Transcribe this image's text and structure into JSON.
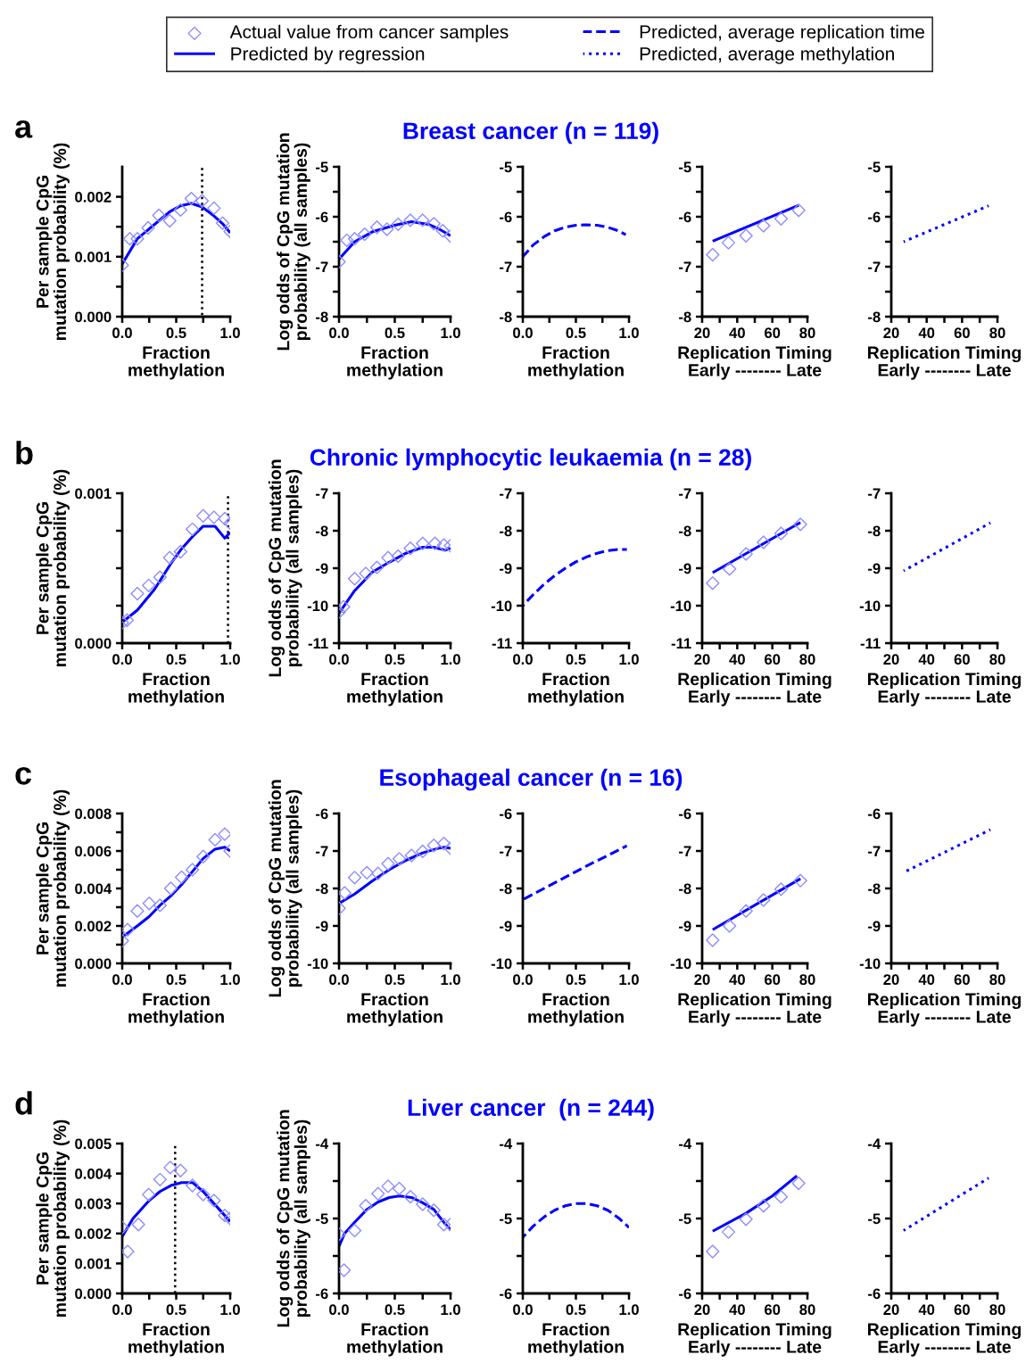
{
  "chart_data": [
    {
      "type": "line",
      "xlabel": "Fraction\nmethylation",
      "ylabel": "Per sample CpG\nmutation probability (%)",
      "annotations": [
        "a"
      ],
      "xlim": [
        0,
        1
      ],
      "xticks": [
        {
          "value": 0,
          "label": "0.0"
        },
        {
          "value": 0.25,
          "label": null
        },
        {
          "value": 0.5,
          "label": "0.5"
        },
        {
          "value": 0.75,
          "label": null
        },
        {
          "value": 1,
          "label": "1.0"
        }
      ],
      "ylim": [
        0,
        0.0025
      ],
      "yticks": [
        {
          "value": 0,
          "label": "0.000"
        },
        {
          "value": 0.0005,
          "label": null
        },
        {
          "value": 0.001,
          "label": "0.001"
        },
        {
          "value": 0.0015,
          "label": null
        },
        {
          "value": 0.002,
          "label": "0.002"
        }
      ],
      "ref_lines": [
        {
          "axis": "x",
          "value": 0.74,
          "label": null,
          "color": "#000000",
          "line_style": "dotted"
        }
      ],
      "series": [
        {
          "type": "scatter",
          "marker": "diamond",
          "color": "#8c8cff",
          "x": [
            0,
            0.07,
            0.14,
            0.24,
            0.34,
            0.44,
            0.54,
            0.64,
            0.74,
            0.85,
            0.93,
            1.0
          ],
          "values": [
            0.00086,
            0.0013,
            0.0013,
            0.00148,
            0.00169,
            0.0016,
            0.00178,
            0.00197,
            0.00193,
            0.00181,
            0.00156,
            0.00142
          ]
        },
        {
          "type": "line",
          "line_style": "solid",
          "color": "#0000ff",
          "x": [
            0,
            0.14,
            0.24,
            0.34,
            0.44,
            0.54,
            0.64,
            0.74,
            0.85,
            0.93,
            1.0
          ],
          "values": [
            0.00088,
            0.0013,
            0.00145,
            0.0016,
            0.00175,
            0.00185,
            0.00189,
            0.00183,
            0.00168,
            0.00155,
            0.0014
          ]
        }
      ]
    },
    {
      "type": "line",
      "xlabel": "Fraction\nmethylation",
      "ylabel": "Log odds of CpG mutation\nprobability (all samples)",
      "legend": "top",
      "xlim": [
        0,
        1
      ],
      "xticks": [
        {
          "value": 0,
          "label": "0.0"
        },
        {
          "value": 0.25,
          "label": null
        },
        {
          "value": 0.5,
          "label": "0.5"
        },
        {
          "value": 0.75,
          "label": null
        },
        {
          "value": 1,
          "label": "1.0"
        }
      ],
      "ylim": [
        -8,
        -5
      ],
      "yticks": [
        -8,
        {
          "value": -7.5,
          "label": null
        },
        -7,
        {
          "value": -6.5,
          "label": null
        },
        -6,
        {
          "value": -5.5,
          "label": null
        },
        -5
      ],
      "series": [
        {
          "type": "scatter",
          "name": "Actual value from cancer samples",
          "marker": "diamond",
          "color": "#8c8cff",
          "x": [
            0,
            0.07,
            0.14,
            0.23,
            0.34,
            0.43,
            0.53,
            0.64,
            0.75,
            0.85,
            0.93,
            1.0
          ],
          "values": [
            -6.9,
            -6.47,
            -6.44,
            -6.35,
            -6.21,
            -6.25,
            -6.15,
            -6.07,
            -6.07,
            -6.14,
            -6.28,
            -6.39
          ]
        },
        {
          "type": "line",
          "name": "Predicted by regression",
          "line_style": "solid",
          "color": "#0000ff",
          "x": [
            0,
            0.14,
            0.3,
            0.5,
            0.65,
            0.8,
            0.9,
            1.0
          ],
          "values": [
            -6.85,
            -6.5,
            -6.3,
            -6.17,
            -6.1,
            -6.15,
            -6.25,
            -6.38
          ]
        }
      ]
    },
    {
      "type": "line",
      "title": "Breast cancer (n = 119)",
      "xlabel": "Fraction\nmethylation",
      "xlim": [
        0,
        1
      ],
      "xticks": [
        {
          "value": 0,
          "label": "0.0"
        },
        {
          "value": 0.25,
          "label": null
        },
        {
          "value": 0.5,
          "label": "0.5"
        },
        {
          "value": 0.75,
          "label": null
        },
        {
          "value": 1,
          "label": "1.0"
        }
      ],
      "ylim": [
        -8,
        -5
      ],
      "yticks": [
        -8,
        {
          "value": -7.5,
          "label": null
        },
        -7,
        {
          "value": -6.5,
          "label": null
        },
        -6,
        {
          "value": -5.5,
          "label": null
        },
        -5
      ],
      "series": [
        {
          "type": "line",
          "name": "Predicted, average replication time",
          "line_style": "dashed",
          "color": "#0000ff",
          "x": [
            0,
            0.1,
            0.2,
            0.3,
            0.4,
            0.5,
            0.6,
            0.7,
            0.8,
            0.9,
            0.97
          ],
          "values": [
            -6.8,
            -6.56,
            -6.4,
            -6.28,
            -6.21,
            -6.17,
            -6.16,
            -6.17,
            -6.21,
            -6.28,
            -6.36
          ]
        }
      ]
    },
    {
      "type": "line",
      "xlabel": "Replication Timing\nEarly -------- Late",
      "xlim": [
        20,
        80
      ],
      "xticks": [
        20,
        {
          "value": 30,
          "label": null
        },
        40,
        {
          "value": 50,
          "label": null
        },
        60,
        {
          "value": 70,
          "label": null
        },
        80
      ],
      "ylim": [
        -8,
        -5
      ],
      "yticks": [
        -8,
        {
          "value": -7.5,
          "label": null
        },
        -7,
        {
          "value": -6.5,
          "label": null
        },
        -6,
        {
          "value": -5.5,
          "label": null
        },
        -5
      ],
      "series": [
        {
          "type": "scatter",
          "marker": "diamond",
          "color": "#8c8cff",
          "x": [
            26,
            35,
            45,
            55,
            65,
            75
          ],
          "values": [
            -6.76,
            -6.52,
            -6.38,
            -6.18,
            -6.04,
            -5.87
          ]
        },
        {
          "type": "line",
          "line_style": "solid",
          "color": "#0000ff",
          "x": [
            26,
            75
          ],
          "values": [
            -6.49,
            -5.77
          ]
        }
      ]
    },
    {
      "type": "line",
      "xlabel": "Replication Timing\nEarly -------- Late",
      "xlim": [
        20,
        80
      ],
      "xticks": [
        20,
        {
          "value": 30,
          "label": null
        },
        40,
        {
          "value": 50,
          "label": null
        },
        60,
        {
          "value": 70,
          "label": null
        },
        80
      ],
      "ylim": [
        -8,
        -5
      ],
      "yticks": [
        -8,
        {
          "value": -7.5,
          "label": null
        },
        -7,
        {
          "value": -6.5,
          "label": null
        },
        -6,
        {
          "value": -5.5,
          "label": null
        },
        -5
      ],
      "series": [
        {
          "type": "line",
          "name": "Predicted, average methylation",
          "line_style": "dotted",
          "color": "#0000ff",
          "x": [
            27,
            75
          ],
          "values": [
            -6.5,
            -5.78
          ]
        }
      ]
    },
    {
      "type": "line",
      "xlabel": "Fraction\nmethylation",
      "ylabel": "Per sample CpG\nmutation probability (%)",
      "annotations": [
        "b"
      ],
      "xlim": [
        0,
        1
      ],
      "xticks": [
        {
          "value": 0,
          "label": "0.0"
        },
        {
          "value": 0.25,
          "label": null
        },
        {
          "value": 0.5,
          "label": "0.5"
        },
        {
          "value": 0.75,
          "label": null
        },
        {
          "value": 1,
          "label": "1.0"
        }
      ],
      "ylim": [
        0,
        0.001
      ],
      "yticks": [
        {
          "value": 0,
          "label": "0.000"
        },
        {
          "value": 0.00025,
          "label": null
        },
        {
          "value": 0.0005,
          "label": null
        },
        {
          "value": 0.00075,
          "label": null
        },
        {
          "value": 0.001,
          "label": "0.001"
        }
      ],
      "ref_lines": [
        {
          "axis": "x",
          "value": 0.98,
          "label": null,
          "color": "#000000",
          "line_style": "dotted"
        }
      ],
      "series": [
        {
          "type": "scatter",
          "marker": "diamond",
          "color": "#8c8cff",
          "x": [
            0,
            0.045,
            0.14,
            0.245,
            0.35,
            0.44,
            0.54,
            0.65,
            0.75,
            0.85,
            0.95,
            1.0
          ],
          "values": [
            0.000137,
            0.000153,
            0.00033,
            0.000385,
            0.00044,
            0.00057,
            0.00061,
            0.00076,
            0.00085,
            0.00084,
            0.00083,
            0.0008
          ]
        },
        {
          "type": "line",
          "line_style": "solid",
          "color": "#0000ff",
          "x": [
            0,
            0.14,
            0.3,
            0.45,
            0.55,
            0.65,
            0.75,
            0.86,
            0.95,
            1.0
          ],
          "values": [
            0.00014,
            0.00022,
            0.00036,
            0.00053,
            0.00063,
            0.00071,
            0.00078,
            0.00078,
            0.0007,
            0.00074
          ]
        }
      ]
    },
    {
      "type": "line",
      "xlabel": "Fraction\nmethylation",
      "ylabel": "Log odds of CpG mutation\nprobability (all samples)",
      "xlim": [
        0,
        1
      ],
      "xticks": [
        {
          "value": 0,
          "label": "0.0"
        },
        {
          "value": 0.25,
          "label": null
        },
        {
          "value": 0.5,
          "label": "0.5"
        },
        {
          "value": 0.75,
          "label": null
        },
        {
          "value": 1,
          "label": "1.0"
        }
      ],
      "ylim": [
        -11,
        -7
      ],
      "yticks": [
        -11,
        -10,
        -9,
        -8,
        -7
      ],
      "series": [
        {
          "type": "scatter",
          "marker": "diamond",
          "color": "#8c8cff",
          "x": [
            0,
            0.04,
            0.14,
            0.24,
            0.34,
            0.44,
            0.53,
            0.64,
            0.75,
            0.86,
            0.94,
            1.0
          ],
          "values": [
            -10.17,
            -10.03,
            -9.28,
            -9.14,
            -8.98,
            -8.72,
            -8.68,
            -8.47,
            -8.34,
            -8.34,
            -8.38,
            -8.4
          ]
        },
        {
          "type": "line",
          "line_style": "solid",
          "color": "#0000ff",
          "x": [
            0,
            0.14,
            0.3,
            0.45,
            0.6,
            0.75,
            0.85,
            0.95,
            1.0
          ],
          "values": [
            -10.2,
            -9.6,
            -9.1,
            -8.84,
            -8.6,
            -8.44,
            -8.44,
            -8.52,
            -8.47
          ]
        }
      ]
    },
    {
      "type": "line",
      "title": "Chronic lymphocytic leukaemia (n = 28)",
      "xlabel": "Fraction\nmethylation",
      "xlim": [
        0,
        1
      ],
      "xticks": [
        {
          "value": 0,
          "label": "0.0"
        },
        {
          "value": 0.25,
          "label": null
        },
        {
          "value": 0.5,
          "label": "0.5"
        },
        {
          "value": 0.75,
          "label": null
        },
        {
          "value": 1,
          "label": "1.0"
        }
      ],
      "ylim": [
        -11,
        -7
      ],
      "yticks": [
        -11,
        -10,
        -9,
        -8,
        -7
      ],
      "series": [
        {
          "type": "line",
          "line_style": "dashed",
          "color": "#0000ff",
          "x": [
            0,
            0.1,
            0.2,
            0.3,
            0.4,
            0.5,
            0.6,
            0.7,
            0.8,
            0.9,
            0.98
          ],
          "values": [
            -10,
            -9.7,
            -9.43,
            -9.2,
            -9.0,
            -8.83,
            -8.7,
            -8.6,
            -8.53,
            -8.5,
            -8.5
          ]
        }
      ]
    },
    {
      "type": "line",
      "xlabel": "Replication Timing\nEarly -------- Late",
      "xlim": [
        20,
        80
      ],
      "xticks": [
        20,
        {
          "value": 30,
          "label": null
        },
        40,
        {
          "value": 50,
          "label": null
        },
        60,
        {
          "value": 70,
          "label": null
        },
        80
      ],
      "ylim": [
        -11,
        -7
      ],
      "yticks": [
        -11,
        -10,
        -9,
        -8,
        -7
      ],
      "series": [
        {
          "type": "scatter",
          "marker": "diamond",
          "color": "#8c8cff",
          "x": [
            26,
            35.6,
            45,
            55,
            65,
            76
          ],
          "values": [
            -9.4,
            -9.02,
            -8.62,
            -8.31,
            -8.07,
            -7.83
          ]
        },
        {
          "type": "line",
          "line_style": "solid",
          "color": "#0000ff",
          "x": [
            26,
            76
          ],
          "values": [
            -9.12,
            -7.78
          ]
        }
      ]
    },
    {
      "type": "line",
      "xlabel": "Replication Timing\nEarly -------- Late",
      "xlim": [
        20,
        80
      ],
      "xticks": [
        20,
        {
          "value": 30,
          "label": null
        },
        40,
        {
          "value": 50,
          "label": null
        },
        60,
        {
          "value": 70,
          "label": null
        },
        80
      ],
      "ylim": [
        -11,
        -7
      ],
      "yticks": [
        -11,
        -10,
        -9,
        -8,
        -7
      ],
      "series": [
        {
          "type": "line",
          "line_style": "dotted",
          "color": "#0000ff",
          "x": [
            27,
            76
          ],
          "values": [
            -9.07,
            -7.79
          ]
        }
      ]
    },
    {
      "type": "line",
      "xlabel": "Fraction\nmethylation",
      "ylabel": "Per sample CpG\nmutation probability (%)",
      "annotations": [
        "c"
      ],
      "xlim": [
        0,
        1
      ],
      "xticks": [
        {
          "value": 0,
          "label": "0.0"
        },
        {
          "value": 0.25,
          "label": null
        },
        {
          "value": 0.5,
          "label": "0.5"
        },
        {
          "value": 0.75,
          "label": null
        },
        {
          "value": 1,
          "label": "1.0"
        }
      ],
      "ylim": [
        0,
        0.008
      ],
      "yticks": [
        {
          "value": 0,
          "label": "0.000"
        },
        {
          "value": 0.001,
          "label": null
        },
        {
          "value": 0.002,
          "label": "0.002"
        },
        {
          "value": 0.003,
          "label": null
        },
        {
          "value": 0.004,
          "label": "0.004"
        },
        {
          "value": 0.005,
          "label": null
        },
        {
          "value": 0.006,
          "label": "0.006"
        },
        {
          "value": 0.007,
          "label": null
        },
        {
          "value": 0.008,
          "label": "0.008"
        }
      ],
      "series": [
        {
          "type": "scatter",
          "marker": "diamond",
          "color": "#8c8cff",
          "x": [
            0,
            0.05,
            0.14,
            0.25,
            0.35,
            0.45,
            0.55,
            0.65,
            0.75,
            0.86,
            0.95,
            1.0
          ],
          "values": [
            0.0012,
            0.0018,
            0.0028,
            0.0032,
            0.0031,
            0.004,
            0.0046,
            0.005,
            0.0057,
            0.0066,
            0.0069,
            0.006
          ]
        },
        {
          "type": "line",
          "line_style": "solid",
          "color": "#0000ff",
          "x": [
            0,
            0.14,
            0.25,
            0.35,
            0.45,
            0.55,
            0.65,
            0.75,
            0.86,
            0.95,
            1.0
          ],
          "values": [
            0.0014,
            0.002,
            0.0025,
            0.0031,
            0.0036,
            0.0042,
            0.0049,
            0.0056,
            0.0061,
            0.0062,
            0.006
          ]
        }
      ]
    },
    {
      "type": "line",
      "xlabel": "Fraction\nmethylation",
      "ylabel": "Log odds of CpG mutation\nprobability (all samples)",
      "xlim": [
        0,
        1
      ],
      "xticks": [
        {
          "value": 0,
          "label": "0.0"
        },
        {
          "value": 0.25,
          "label": null
        },
        {
          "value": 0.5,
          "label": "0.5"
        },
        {
          "value": 0.75,
          "label": null
        },
        {
          "value": 1,
          "label": "1.0"
        }
      ],
      "ylim": [
        -10,
        -6
      ],
      "yticks": [
        -10,
        -9,
        -8,
        -7,
        -6
      ],
      "series": [
        {
          "type": "scatter",
          "marker": "diamond",
          "color": "#8c8cff",
          "x": [
            0,
            0.05,
            0.14,
            0.25,
            0.35,
            0.44,
            0.54,
            0.65,
            0.75,
            0.85,
            0.94,
            1.0
          ],
          "values": [
            -8.53,
            -8.12,
            -7.71,
            -7.58,
            -7.6,
            -7.34,
            -7.21,
            -7.12,
            -7.01,
            -6.85,
            -6.8,
            -6.93
          ]
        },
        {
          "type": "line",
          "line_style": "solid",
          "color": "#0000ff",
          "x": [
            0,
            0.14,
            0.3,
            0.45,
            0.6,
            0.75,
            0.9,
            0.95,
            1.0
          ],
          "values": [
            -8.4,
            -8.15,
            -7.8,
            -7.5,
            -7.25,
            -7.05,
            -6.92,
            -6.9,
            -6.93
          ]
        }
      ]
    },
    {
      "type": "line",
      "title": "Esophageal cancer (n = 16)",
      "xlabel": "Fraction\nmethylation",
      "xlim": [
        0,
        1
      ],
      "xticks": [
        {
          "value": 0,
          "label": "0.0"
        },
        {
          "value": 0.25,
          "label": null
        },
        {
          "value": 0.5,
          "label": "0.5"
        },
        {
          "value": 0.75,
          "label": null
        },
        {
          "value": 1,
          "label": "1.0"
        }
      ],
      "ylim": [
        -10,
        -6
      ],
      "yticks": [
        -10,
        -9,
        -8,
        -7,
        -6
      ],
      "series": [
        {
          "type": "line",
          "line_style": "dashed",
          "color": "#0000ff",
          "x": [
            0,
            0.2,
            0.4,
            0.6,
            0.8,
            0.98
          ],
          "values": [
            -8.3,
            -8.0,
            -7.7,
            -7.4,
            -7.12,
            -6.86
          ]
        }
      ]
    },
    {
      "type": "line",
      "xlabel": "Replication Timing\nEarly -------- Late",
      "xlim": [
        20,
        80
      ],
      "xticks": [
        20,
        {
          "value": 30,
          "label": null
        },
        40,
        {
          "value": 50,
          "label": null
        },
        60,
        {
          "value": 70,
          "label": null
        },
        80
      ],
      "ylim": [
        -10,
        -6
      ],
      "yticks": [
        -10,
        -9,
        -8,
        -7,
        -6
      ],
      "series": [
        {
          "type": "scatter",
          "marker": "diamond",
          "color": "#8c8cff",
          "x": [
            26,
            35.6,
            45,
            55,
            65,
            76
          ],
          "values": [
            -9.38,
            -9.0,
            -8.6,
            -8.31,
            -8.02,
            -7.79
          ]
        },
        {
          "type": "line",
          "line_style": "solid",
          "color": "#0000ff",
          "x": [
            26,
            76
          ],
          "values": [
            -9.1,
            -7.74
          ]
        }
      ]
    },
    {
      "type": "line",
      "xlabel": "Replication Timing\nEarly -------- Late",
      "xlim": [
        20,
        80
      ],
      "xticks": [
        20,
        {
          "value": 30,
          "label": null
        },
        40,
        {
          "value": 50,
          "label": null
        },
        60,
        {
          "value": 70,
          "label": null
        },
        80
      ],
      "ylim": [
        -10,
        -6
      ],
      "yticks": [
        -10,
        -9,
        -8,
        -7,
        -6
      ],
      "series": [
        {
          "type": "line",
          "line_style": "dotted",
          "color": "#0000ff",
          "x": [
            28,
            76
          ],
          "values": [
            -7.55,
            -6.43
          ]
        }
      ]
    },
    {
      "type": "line",
      "xlabel": "Fraction\nmethylation",
      "ylabel": "Per sample CpG\nmutation probability (%)",
      "annotations": [
        "d"
      ],
      "xlim": [
        0,
        1
      ],
      "xticks": [
        {
          "value": 0,
          "label": "0.0"
        },
        {
          "value": 0.25,
          "label": null
        },
        {
          "value": 0.5,
          "label": "0.5"
        },
        {
          "value": 0.75,
          "label": null
        },
        {
          "value": 1,
          "label": "1.0"
        }
      ],
      "ylim": [
        0,
        0.005
      ],
      "yticks": [
        {
          "value": 0,
          "label": "0.000"
        },
        {
          "value": 0.001,
          "label": "0.001"
        },
        {
          "value": 0.002,
          "label": "0.002"
        },
        {
          "value": 0.003,
          "label": "0.003"
        },
        {
          "value": 0.004,
          "label": "0.004"
        },
        {
          "value": 0.005,
          "label": "0.005"
        }
      ],
      "ref_lines": [
        {
          "axis": "x",
          "value": 0.49,
          "label": null,
          "color": "#000000",
          "line_style": "dotted"
        }
      ],
      "series": [
        {
          "type": "scatter",
          "marker": "diamond",
          "color": "#8c8cff",
          "x": [
            0,
            0.05,
            0.15,
            0.245,
            0.35,
            0.445,
            0.54,
            0.65,
            0.75,
            0.85,
            0.95,
            1.0
          ],
          "values": [
            0.0022,
            0.0014,
            0.0023,
            0.0033,
            0.0038,
            0.0042,
            0.0041,
            0.0036,
            0.0033,
            0.0031,
            0.0026,
            0.0025
          ]
        },
        {
          "type": "line",
          "line_style": "solid",
          "color": "#0000ff",
          "x": [
            0,
            0.1,
            0.25,
            0.35,
            0.45,
            0.55,
            0.65,
            0.75,
            0.85,
            0.95,
            1.0
          ],
          "values": [
            0.0019,
            0.0025,
            0.0031,
            0.0034,
            0.0036,
            0.0037,
            0.0037,
            0.0034,
            0.003,
            0.0026,
            0.0024
          ]
        }
      ]
    },
    {
      "type": "line",
      "xlabel": "Fraction\nmethylation",
      "ylabel": "Log odds of CpG mutation\nprobability (all samples)",
      "xlim": [
        0,
        1
      ],
      "xticks": [
        {
          "value": 0,
          "label": "0.0"
        },
        {
          "value": 0.25,
          "label": null
        },
        {
          "value": 0.5,
          "label": "0.5"
        },
        {
          "value": 0.75,
          "label": null
        },
        {
          "value": 1,
          "label": "1.0"
        }
      ],
      "ylim": [
        -6,
        -4
      ],
      "yticks": [
        -6,
        {
          "value": -5.5,
          "label": null
        },
        -5,
        {
          "value": -4.5,
          "label": null
        },
        -4
      ],
      "series": [
        {
          "type": "scatter",
          "marker": "diamond",
          "color": "#8c8cff",
          "x": [
            0,
            0.045,
            0.14,
            0.24,
            0.35,
            0.44,
            0.54,
            0.64,
            0.75,
            0.85,
            0.94,
            1.0
          ],
          "values": [
            -5.21,
            -5.69,
            -5.16,
            -4.83,
            -4.67,
            -4.57,
            -4.6,
            -4.71,
            -4.81,
            -4.89,
            -5.08,
            -5.08
          ]
        },
        {
          "type": "line",
          "line_style": "solid",
          "color": "#0000ff",
          "x": [
            0,
            0.05,
            0.14,
            0.25,
            0.35,
            0.45,
            0.54,
            0.65,
            0.75,
            0.85,
            0.95,
            1.0
          ],
          "values": [
            -5.37,
            -5.2,
            -5.05,
            -4.88,
            -4.78,
            -4.72,
            -4.7,
            -4.72,
            -4.79,
            -4.88,
            -5.07,
            -5.15
          ]
        }
      ]
    },
    {
      "type": "line",
      "title": "Liver cancer  (n = 244)",
      "xlabel": "Fraction\nmethylation",
      "xlim": [
        0,
        1
      ],
      "xticks": [
        {
          "value": 0,
          "label": "0.0"
        },
        {
          "value": 0.25,
          "label": null
        },
        {
          "value": 0.5,
          "label": "0.5"
        },
        {
          "value": 0.75,
          "label": null
        },
        {
          "value": 1,
          "label": "1.0"
        }
      ],
      "ylim": [
        -6,
        -4
      ],
      "yticks": [
        -6,
        {
          "value": -5.5,
          "label": null
        },
        -5,
        {
          "value": -4.5,
          "label": null
        },
        -4
      ],
      "series": [
        {
          "type": "line",
          "line_style": "dashed",
          "color": "#0000ff",
          "x": [
            0,
            0.1,
            0.2,
            0.3,
            0.4,
            0.5,
            0.6,
            0.7,
            0.8,
            0.9,
            1.0
          ],
          "values": [
            -5.25,
            -5.1,
            -4.98,
            -4.89,
            -4.83,
            -4.8,
            -4.8,
            -4.83,
            -4.89,
            -4.99,
            -5.12
          ]
        }
      ]
    },
    {
      "type": "line",
      "xlabel": "Replication Timing\nEarly -------- Late",
      "xlim": [
        20,
        80
      ],
      "xticks": [
        20,
        {
          "value": 30,
          "label": null
        },
        40,
        {
          "value": 50,
          "label": null
        },
        60,
        {
          "value": 70,
          "label": null
        },
        80
      ],
      "ylim": [
        -6,
        -4
      ],
      "yticks": [
        -6,
        {
          "value": -5.5,
          "label": null
        },
        -5,
        {
          "value": -4.5,
          "label": null
        },
        -4
      ],
      "series": [
        {
          "type": "scatter",
          "marker": "diamond",
          "color": "#8c8cff",
          "x": [
            26,
            35,
            45,
            55,
            65,
            75
          ],
          "values": [
            -5.44,
            -5.18,
            -5.01,
            -4.83,
            -4.71,
            -4.53
          ]
        },
        {
          "type": "line",
          "line_style": "solid",
          "color": "#0000ff",
          "x": [
            26,
            45,
            60,
            74
          ],
          "values": [
            -5.17,
            -4.93,
            -4.7,
            -4.43
          ]
        }
      ]
    },
    {
      "type": "line",
      "xlabel": "Replication Timing\nEarly -------- Late",
      "xlim": [
        20,
        80
      ],
      "xticks": [
        20,
        {
          "value": 30,
          "label": null
        },
        40,
        {
          "value": 50,
          "label": null
        },
        60,
        {
          "value": 70,
          "label": null
        },
        80
      ],
      "ylim": [
        -6,
        -4
      ],
      "yticks": [
        -6,
        {
          "value": -5.5,
          "label": null
        },
        -5,
        {
          "value": -4.5,
          "label": null
        },
        -4
      ],
      "series": [
        {
          "type": "line",
          "line_style": "dotted",
          "color": "#0000ff",
          "x": [
            27,
            75
          ],
          "values": [
            -5.16,
            -4.46
          ]
        }
      ]
    }
  ]
}
